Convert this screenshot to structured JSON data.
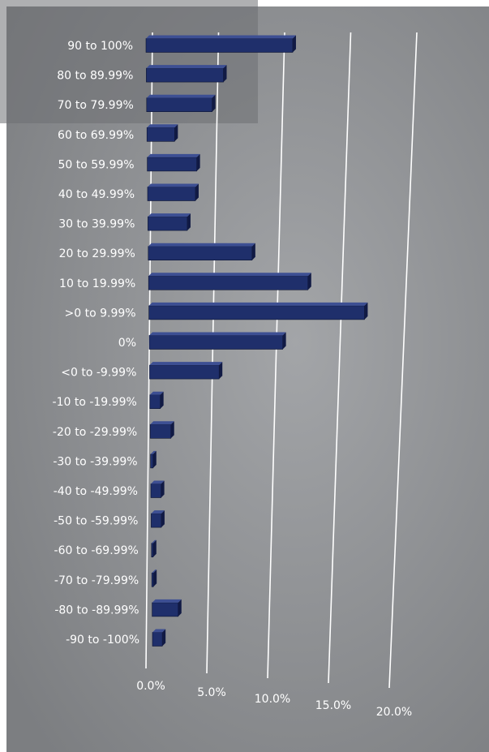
{
  "chart_data": {
    "type": "bar",
    "orientation": "horizontal",
    "categories": [
      "90 to 100%",
      "80 to 89.99%",
      "70 to 79.99%",
      "60 to 69.99%",
      "50 to 59.99%",
      "40 to 49.99%",
      "30 to 39.99%",
      "20 to 29.99%",
      "10 to 19.99%",
      ">0 to 9.99%",
      "0%",
      "<0 to -9.99%",
      "-10 to -19.99%",
      "-20 to -29.99%",
      "-30 to -39.99%",
      "-40 to -49.99%",
      "-50 to -59.99%",
      "-60 to -69.99%",
      "-70 to -79.99%",
      "-80 to -89.99%",
      "-90 to -100%"
    ],
    "values": [
      10.4,
      5.5,
      4.7,
      2.0,
      3.6,
      3.5,
      2.9,
      7.7,
      11.9,
      16.2,
      10.1,
      5.3,
      0.8,
      1.6,
      0.2,
      0.8,
      0.8,
      0.1,
      0.1,
      2.1,
      0.8
    ],
    "xticks": [
      "0.0%",
      "5.0%",
      "10.0%",
      "15.0%",
      "20.0%"
    ],
    "xlim": [
      0,
      20
    ],
    "grid": true,
    "title": "",
    "xlabel": "",
    "ylabel": "",
    "colors": {
      "bar": "#1f2f6b",
      "bar_top": "#3d4f93",
      "bar_side": "#111a44",
      "grid": "#ffffff",
      "text": "#ffffff",
      "background_center": "#a3a5a8",
      "background_edge": "#7c7e81"
    }
  }
}
